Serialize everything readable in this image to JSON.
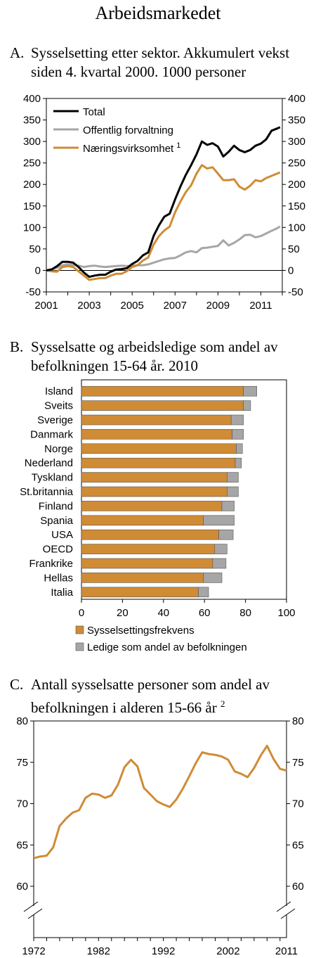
{
  "page_title": "Arbeidsmarkedet",
  "chart_data": [
    {
      "type": "line",
      "letter": "A.",
      "title_line1": "Sysselsetting etter sektor. Akkumulert vekst",
      "title_line2": "siden 4. kvartal  2000. 1000 personer",
      "ylim": [
        -50,
        400
      ],
      "yticks": [
        -50,
        0,
        50,
        100,
        150,
        200,
        250,
        300,
        350,
        400
      ],
      "xticks": [
        2001,
        2003,
        2005,
        2007,
        2009,
        2011
      ],
      "xlim": [
        2001,
        2012
      ],
      "legend_position": "top-left",
      "series": [
        {
          "name": "Total",
          "sup": "",
          "color": "#000000",
          "x": [
            2001.0,
            2001.25,
            2001.5,
            2001.75,
            2002.0,
            2002.25,
            2002.5,
            2002.75,
            2003.0,
            2003.25,
            2003.5,
            2003.75,
            2004.0,
            2004.25,
            2004.5,
            2004.75,
            2005.0,
            2005.25,
            2005.5,
            2005.75,
            2006.0,
            2006.25,
            2006.5,
            2006.75,
            2007.0,
            2007.25,
            2007.5,
            2007.75,
            2008.0,
            2008.25,
            2008.5,
            2008.75,
            2009.0,
            2009.25,
            2009.5,
            2009.75,
            2010.0,
            2010.25,
            2010.5,
            2010.75,
            2011.0,
            2011.25,
            2011.5,
            2011.75,
            2011.9
          ],
          "values": [
            0,
            2,
            10,
            20,
            20,
            18,
            8,
            -5,
            -15,
            -12,
            -10,
            -10,
            -3,
            2,
            3,
            5,
            15,
            22,
            35,
            42,
            80,
            105,
            125,
            132,
            165,
            195,
            222,
            245,
            270,
            300,
            292,
            296,
            288,
            265,
            276,
            290,
            280,
            275,
            280,
            290,
            295,
            305,
            325,
            330,
            333
          ]
        },
        {
          "name": "Offentlig forvaltning",
          "sup": "",
          "color": "#a6a6a6",
          "x": [
            2001.0,
            2001.25,
            2001.5,
            2001.75,
            2002.0,
            2002.25,
            2002.5,
            2002.75,
            2003.0,
            2003.25,
            2003.5,
            2003.75,
            2004.0,
            2004.25,
            2004.5,
            2004.75,
            2005.0,
            2005.25,
            2005.5,
            2005.75,
            2006.0,
            2006.25,
            2006.5,
            2006.75,
            2007.0,
            2007.25,
            2007.5,
            2007.75,
            2008.0,
            2008.25,
            2008.5,
            2008.75,
            2009.0,
            2009.25,
            2009.5,
            2009.75,
            2010.0,
            2010.25,
            2010.5,
            2010.75,
            2011.0,
            2011.25,
            2011.5,
            2011.75,
            2011.9
          ],
          "values": [
            0,
            3,
            6,
            12,
            14,
            13,
            11,
            8,
            10,
            11,
            9,
            8,
            9,
            10,
            11,
            10,
            11,
            12,
            12,
            14,
            18,
            22,
            26,
            28,
            29,
            35,
            42,
            45,
            42,
            52,
            53,
            55,
            57,
            70,
            58,
            64,
            72,
            82,
            83,
            77,
            80,
            86,
            92,
            98,
            102
          ]
        },
        {
          "name": "Næringsvirksomhet",
          "sup": "1",
          "color": "#d08b35",
          "x": [
            2001.0,
            2001.25,
            2001.5,
            2001.75,
            2002.0,
            2002.25,
            2002.5,
            2002.75,
            2003.0,
            2003.25,
            2003.5,
            2003.75,
            2004.0,
            2004.25,
            2004.5,
            2004.75,
            2005.0,
            2005.25,
            2005.5,
            2005.75,
            2006.0,
            2006.25,
            2006.5,
            2006.75,
            2007.0,
            2007.25,
            2007.5,
            2007.75,
            2008.0,
            2008.25,
            2008.5,
            2008.75,
            2009.0,
            2009.25,
            2009.5,
            2009.75,
            2010.0,
            2010.25,
            2010.5,
            2010.75,
            2011.0,
            2011.25,
            2011.5,
            2011.75,
            2011.9
          ],
          "values": [
            0,
            -2,
            -3,
            8,
            10,
            8,
            -2,
            -12,
            -22,
            -20,
            -18,
            -18,
            -12,
            -8,
            -8,
            -2,
            8,
            12,
            23,
            30,
            60,
            80,
            93,
            102,
            135,
            160,
            182,
            198,
            225,
            245,
            237,
            240,
            225,
            210,
            210,
            212,
            195,
            188,
            197,
            210,
            207,
            215,
            220,
            225,
            228
          ]
        }
      ]
    },
    {
      "type": "bar",
      "letter": "B.",
      "title_line1": "Sysselsatte og arbeidsledige som andel av",
      "title_line2": "befolkningen 15-64 år. 2010",
      "orientation": "horizontal",
      "stacked": true,
      "xlim": [
        0,
        100
      ],
      "xticks": [
        0,
        20,
        40,
        60,
        80,
        100
      ],
      "legend_position": "bottom",
      "categories": [
        "Island",
        "Sveits",
        "Sverige",
        "Danmark",
        "Norge",
        "Nederland",
        "Tyskland",
        "St.britannia",
        "Finland",
        "Spania",
        "USA",
        "OECD",
        "Frankrike",
        "Hellas",
        "Italia"
      ],
      "series": [
        {
          "name": "Sysselsettingsfrekvens",
          "color": "#d08b35",
          "values": [
            79,
            79,
            73,
            73.5,
            75.5,
            75,
            71,
            71,
            68.5,
            59.5,
            67,
            65,
            64,
            59.5,
            57
          ]
        },
        {
          "name": "Ledige som andel av befolkningen",
          "color": "#a6a6a6",
          "values": [
            6.5,
            3.5,
            6,
            5.5,
            3,
            3,
            5.5,
            5.5,
            6,
            15,
            7,
            6,
            6.5,
            9,
            5
          ]
        }
      ]
    },
    {
      "type": "line",
      "letter": "C.",
      "title_line1": "Antall sysselsatte personer som andel av",
      "title_line2": "befolkningen i alderen 15-66 år",
      "title_sup": "2",
      "ylim": [
        60,
        80
      ],
      "yticks": [
        60,
        65,
        70,
        75,
        80
      ],
      "xticks": [
        1972,
        1982,
        1992,
        2002,
        2011
      ],
      "xlim": [
        1972,
        2011
      ],
      "axis_break": true,
      "series": [
        {
          "name": "",
          "color": "#d08b35",
          "x": [
            1972,
            1973,
            1974,
            1975,
            1976,
            1977,
            1978,
            1979,
            1980,
            1981,
            1982,
            1983,
            1984,
            1985,
            1986,
            1987,
            1988,
            1989,
            1990,
            1991,
            1992,
            1993,
            1994,
            1995,
            1996,
            1997,
            1998,
            1999,
            2000,
            2001,
            2002,
            2003,
            2004,
            2005,
            2006,
            2007,
            2008,
            2009,
            2010,
            2011
          ],
          "values": [
            63.4,
            63.6,
            63.7,
            64.7,
            67.3,
            68.2,
            68.9,
            69.2,
            70.7,
            71.2,
            71.1,
            70.7,
            71.0,
            72.3,
            74.4,
            75.3,
            74.5,
            71.9,
            71.1,
            70.3,
            69.9,
            69.6,
            70.5,
            71.8,
            73.3,
            74.9,
            76.2,
            76.0,
            75.9,
            75.7,
            75.3,
            73.9,
            73.6,
            73.2,
            74.3,
            75.8,
            77.0,
            75.4,
            74.2,
            74.0
          ]
        }
      ]
    }
  ]
}
